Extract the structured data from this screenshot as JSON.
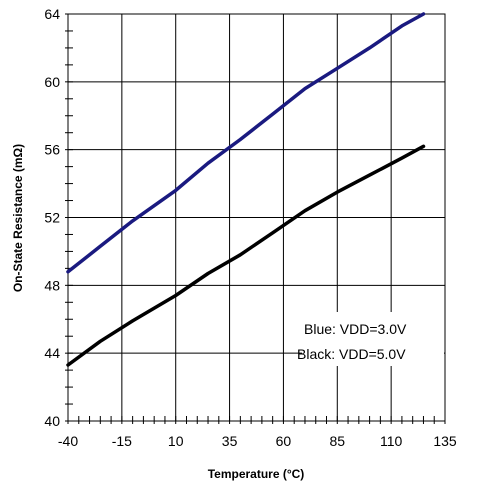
{
  "chart_data": {
    "type": "line",
    "title": "",
    "xlabel": "Temperature (°C)",
    "ylabel": "On-State Resistance (mΩ)",
    "xlim": [
      -40,
      135
    ],
    "ylim": [
      40,
      64
    ],
    "x_ticks": [
      -40,
      -15,
      10,
      35,
      60,
      85,
      110,
      135
    ],
    "y_ticks": [
      40,
      44,
      48,
      52,
      56,
      60,
      64
    ],
    "grid": true,
    "series": [
      {
        "name": "Blue: VDD=3.0V",
        "color": "#1a1a80",
        "x": [
          -40,
          -25,
          -10,
          10,
          25,
          40,
          55,
          70,
          85,
          100,
          115,
          125
        ],
        "y": [
          48.8,
          50.3,
          51.8,
          53.6,
          55.2,
          56.6,
          58.1,
          59.6,
          60.8,
          62.0,
          63.3,
          64.0
        ]
      },
      {
        "name": "Black: VDD=5.0V",
        "color": "#000000",
        "x": [
          -40,
          -25,
          -10,
          10,
          25,
          40,
          55,
          70,
          85,
          100,
          115,
          125
        ],
        "y": [
          43.3,
          44.7,
          45.9,
          47.4,
          48.7,
          49.8,
          51.1,
          52.4,
          53.5,
          54.5,
          55.5,
          56.2
        ]
      }
    ],
    "legend": {
      "placement": "bottom-right",
      "entries": [
        "Blue: VDD=3.0V",
        "Black: VDD=5.0V"
      ]
    }
  }
}
